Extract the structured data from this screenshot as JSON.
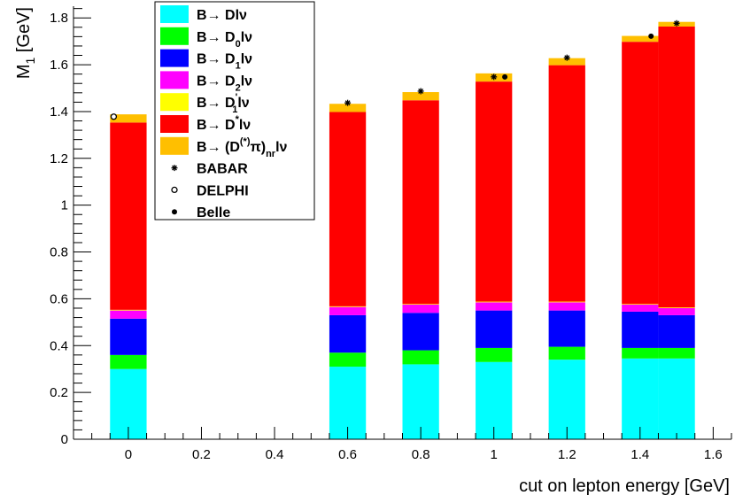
{
  "chart_data": {
    "type": "stacked-bar",
    "title": "",
    "xlabel": "cut on lepton energy [GeV]",
    "ylabel": "M1 [GeV]",
    "ylabel_parts": {
      "main": "M",
      "sub": "1",
      "unit": " [GeV]"
    },
    "xlim": [
      -0.15,
      1.65
    ],
    "ylim": [
      0,
      1.85
    ],
    "grid": false,
    "legend_position": "top-left",
    "x_ticks": [
      {
        "value": 0,
        "label": "0"
      },
      {
        "value": 0.2,
        "label": "0.2"
      },
      {
        "value": 0.4,
        "label": "0.4"
      },
      {
        "value": 0.6,
        "label": "0.6"
      },
      {
        "value": 0.8,
        "label": "0.8"
      },
      {
        "value": 1.0,
        "label": "1"
      },
      {
        "value": 1.2,
        "label": "1.2"
      },
      {
        "value": 1.4,
        "label": "1.4"
      },
      {
        "value": 1.6,
        "label": "1.6"
      }
    ],
    "y_ticks": [
      {
        "value": 0,
        "label": "0"
      },
      {
        "value": 0.2,
        "label": "0.2"
      },
      {
        "value": 0.4,
        "label": "0.4"
      },
      {
        "value": 0.6,
        "label": "0.6"
      },
      {
        "value": 0.8,
        "label": "0.8"
      },
      {
        "value": 1.0,
        "label": "1"
      },
      {
        "value": 1.2,
        "label": "1.2"
      },
      {
        "value": 1.4,
        "label": "1.4"
      },
      {
        "value": 1.6,
        "label": "1.6"
      },
      {
        "value": 1.8,
        "label": "1.8"
      }
    ],
    "bins": [
      {
        "x0": -0.05,
        "x1": 0.05
      },
      {
        "x0": 0.55,
        "x1": 0.65
      },
      {
        "x0": 0.75,
        "x1": 0.85
      },
      {
        "x0": 0.95,
        "x1": 1.05
      },
      {
        "x0": 1.15,
        "x1": 1.25
      },
      {
        "x0": 1.35,
        "x1": 1.45
      },
      {
        "x0": 1.45,
        "x1": 1.55
      }
    ],
    "series": [
      {
        "name": "B→ Dlν",
        "legend": {
          "pre": "B→ D",
          "sub": "",
          "sup": "",
          "post": "lν"
        },
        "color": "#00ffff",
        "values": [
          0.3,
          0.31,
          0.32,
          0.33,
          0.34,
          0.345,
          0.345
        ]
      },
      {
        "name": "B→ D0lν",
        "legend": {
          "pre": "B→ D",
          "sub": "0",
          "sup": "",
          "post": "lν"
        },
        "color": "#00ff00",
        "values": [
          0.06,
          0.06,
          0.06,
          0.06,
          0.055,
          0.045,
          0.045
        ]
      },
      {
        "name": "B→ D1lν",
        "legend": {
          "pre": "B→ D",
          "sub": "1",
          "sup": "",
          "post": "lν"
        },
        "color": "#0000ff",
        "values": [
          0.155,
          0.16,
          0.16,
          0.16,
          0.155,
          0.155,
          0.14
        ]
      },
      {
        "name": "B→ D2lν",
        "legend": {
          "pre": "B→ D",
          "sub": "2",
          "sup": "",
          "post": "lν"
        },
        "color": "#ff00ff",
        "values": [
          0.035,
          0.035,
          0.035,
          0.035,
          0.035,
          0.03,
          0.03
        ]
      },
      {
        "name": "B→ D'1lν",
        "legend": {
          "pre": "B→ D",
          "sub": "1",
          "sup": "'",
          "post": "lν"
        },
        "color": "#ffff00",
        "values": [
          0.003,
          0.003,
          0.003,
          0.003,
          0.003,
          0.003,
          0.003
        ]
      },
      {
        "name": "B→ D*lν",
        "legend": {
          "pre": "B→ D",
          "sub": "",
          "sup": "*",
          "post": "lν"
        },
        "color": "#ff0000",
        "values": [
          0.8,
          0.83,
          0.87,
          0.94,
          1.01,
          1.12,
          1.2
        ]
      },
      {
        "name": "B→ (D(*)π)nrlν",
        "legend": {
          "pre": "B→ (D",
          "sub": "",
          "sup": "(*)",
          "post": "π)",
          "sub2": "nr",
          "post2": "lν"
        },
        "color": "#ffbf00",
        "values": [
          0.035,
          0.035,
          0.035,
          0.035,
          0.03,
          0.025,
          0.02
        ]
      }
    ],
    "measurements": [
      {
        "name": "BABAR",
        "marker": "star",
        "x": [
          0.6,
          0.8,
          1.0,
          1.2,
          1.5
        ],
        "y": [
          1.437,
          1.487,
          1.548,
          1.63,
          1.777
        ]
      },
      {
        "name": "DELPHI",
        "marker": "open-circle",
        "x": [
          -0.04
        ],
        "y": [
          1.378
        ]
      },
      {
        "name": "Belle",
        "marker": "filled-circle",
        "x": [
          1.03,
          1.43
        ],
        "y": [
          1.548,
          1.722
        ]
      }
    ]
  }
}
